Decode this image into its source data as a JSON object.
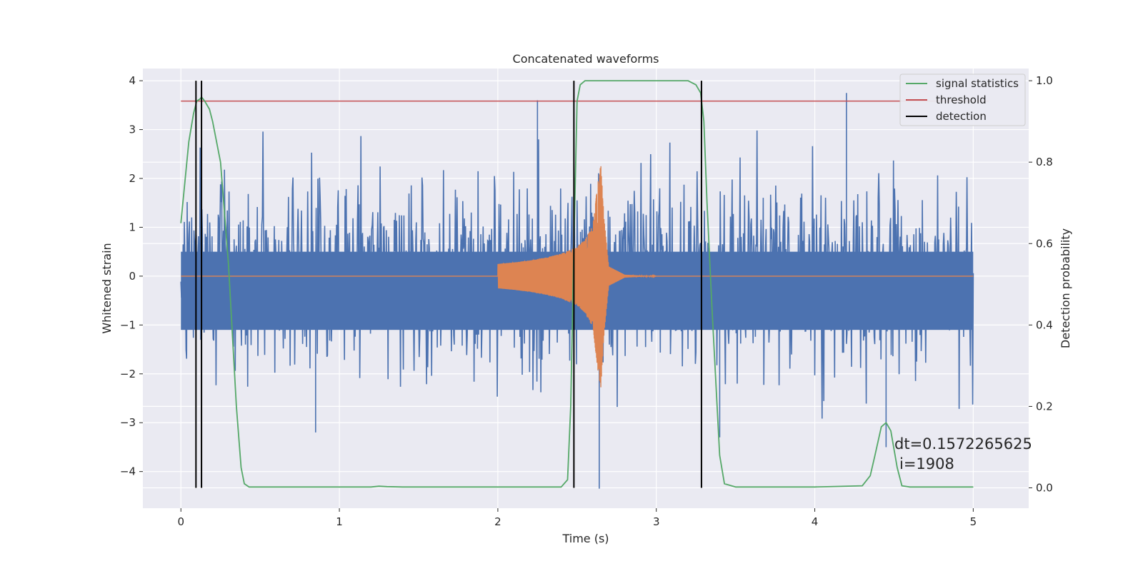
{
  "chart_data": {
    "type": "line",
    "title": "Concatenated waveforms",
    "xlabel": "Time (s)",
    "ylabel_left": "Whitened strain",
    "ylabel_right": "Detection probability",
    "xlim": [
      -0.24,
      5.35
    ],
    "ylim_left": [
      -4.75,
      4.25
    ],
    "ylim_right": [
      -0.05,
      1.03
    ],
    "x_ticks": [
      0,
      1,
      2,
      3,
      4,
      5
    ],
    "y_ticks_left": [
      -4,
      -3,
      -2,
      -1,
      0,
      1,
      2,
      3,
      4
    ],
    "y_ticks_right": [
      0.0,
      0.2,
      0.4,
      0.6,
      0.8,
      1.0
    ],
    "grid": true,
    "legend_position": "top-right",
    "legend": [
      "signal statistics",
      "threshold",
      "detection"
    ],
    "annotation_lines": [
      "dt=0.1572265625",
      "i=1908"
    ],
    "series": [
      {
        "name": "",
        "axis": "left",
        "color": "#4c72b0",
        "description_x": [
          0,
          5
        ],
        "noise_std": 0.75,
        "spikes": [
          [
            0.85,
            -3.2
          ],
          [
            2.25,
            3.6
          ],
          [
            2.64,
            -4.35
          ],
          [
            4.2,
            3.75
          ],
          [
            4.45,
            -3.5
          ],
          [
            3.4,
            -3.3
          ]
        ]
      },
      {
        "name": "",
        "axis": "left",
        "color": "#dd8452",
        "x": [
          2.0,
          2.1,
          2.2,
          2.3,
          2.4,
          2.5,
          2.55,
          2.6,
          2.63,
          2.65,
          2.67,
          2.7,
          2.8,
          3.0
        ],
        "amplitude": [
          0.25,
          0.28,
          0.32,
          0.38,
          0.46,
          0.6,
          0.75,
          1.05,
          1.9,
          2.3,
          1.2,
          0.2,
          0.03,
          0.0
        ]
      },
      {
        "name": "signal statistics",
        "axis": "right",
        "color": "#55a868",
        "x": [
          0.0,
          0.05,
          0.08,
          0.1,
          0.12,
          0.13,
          0.15,
          0.18,
          0.2,
          0.25,
          0.3,
          0.35,
          0.38,
          0.4,
          0.43,
          0.5,
          1.0,
          1.2,
          1.25,
          1.3,
          1.4,
          2.0,
          2.4,
          2.44,
          2.46,
          2.48,
          2.5,
          2.52,
          2.55,
          2.6,
          3.2,
          3.25,
          3.28,
          3.3,
          3.32,
          3.35,
          3.4,
          3.43,
          3.5,
          4.0,
          4.3,
          4.35,
          4.38,
          4.42,
          4.45,
          4.48,
          4.52,
          4.55,
          4.6,
          5.0
        ],
        "y": [
          0.65,
          0.85,
          0.92,
          0.95,
          0.955,
          0.96,
          0.95,
          0.93,
          0.9,
          0.8,
          0.55,
          0.2,
          0.05,
          0.01,
          0.002,
          0.002,
          0.002,
          0.002,
          0.004,
          0.003,
          0.002,
          0.002,
          0.002,
          0.02,
          0.2,
          0.6,
          0.95,
          0.99,
          1.0,
          1.0,
          1.0,
          0.99,
          0.97,
          0.9,
          0.7,
          0.45,
          0.08,
          0.01,
          0.002,
          0.002,
          0.005,
          0.03,
          0.08,
          0.15,
          0.16,
          0.14,
          0.05,
          0.005,
          0.002,
          0.002
        ]
      },
      {
        "name": "threshold",
        "axis": "right",
        "color": "#c44e52",
        "x": [
          0,
          5.1
        ],
        "y": [
          0.95,
          0.95
        ]
      }
    ],
    "detections_x": [
      0.095,
      0.13,
      2.48,
      3.285
    ],
    "detection_color": "#000000"
  }
}
